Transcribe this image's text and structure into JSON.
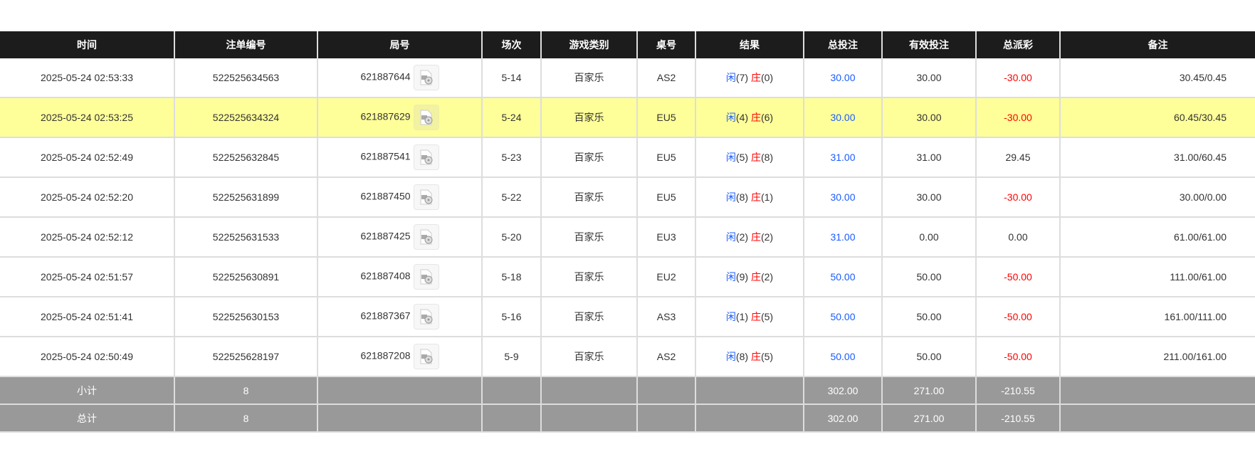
{
  "headers": [
    "时间",
    "注单编号",
    "局号",
    "场次",
    "游戏类别",
    "桌号",
    "结果",
    "总投注",
    "有效投注",
    "总派彩",
    "备注"
  ],
  "rows": [
    {
      "time": "2025-05-24 02:53:33",
      "bet_no": "522525634563",
      "round": "621887644",
      "session": "5-14",
      "game": "百家乐",
      "table": "AS2",
      "player_label": "闲",
      "player": "(7)",
      "banker_label": "庄",
      "banker": "(0)",
      "total_bet": "30.00",
      "valid_bet": "30.00",
      "payout": "-30.00",
      "payout_neg": true,
      "note": "30.45/0.45",
      "highlight": false
    },
    {
      "time": "2025-05-24 02:53:25",
      "bet_no": "522525634324",
      "round": "621887629",
      "session": "5-24",
      "game": "百家乐",
      "table": "EU5",
      "player_label": "闲",
      "player": "(4)",
      "banker_label": "庄",
      "banker": "(6)",
      "total_bet": "30.00",
      "valid_bet": "30.00",
      "payout": "-30.00",
      "payout_neg": true,
      "note": "60.45/30.45",
      "highlight": true
    },
    {
      "time": "2025-05-24 02:52:49",
      "bet_no": "522525632845",
      "round": "621887541",
      "session": "5-23",
      "game": "百家乐",
      "table": "EU5",
      "player_label": "闲",
      "player": "(5)",
      "banker_label": "庄",
      "banker": "(8)",
      "total_bet": "31.00",
      "valid_bet": "31.00",
      "payout": "29.45",
      "payout_neg": false,
      "note": "31.00/60.45",
      "highlight": false
    },
    {
      "time": "2025-05-24 02:52:20",
      "bet_no": "522525631899",
      "round": "621887450",
      "session": "5-22",
      "game": "百家乐",
      "table": "EU5",
      "player_label": "闲",
      "player": "(8)",
      "banker_label": "庄",
      "banker": "(1)",
      "total_bet": "30.00",
      "valid_bet": "30.00",
      "payout": "-30.00",
      "payout_neg": true,
      "note": "30.00/0.00",
      "highlight": false
    },
    {
      "time": "2025-05-24 02:52:12",
      "bet_no": "522525631533",
      "round": "621887425",
      "session": "5-20",
      "game": "百家乐",
      "table": "EU3",
      "player_label": "闲",
      "player": "(2)",
      "banker_label": "庄",
      "banker": "(2)",
      "total_bet": "31.00",
      "valid_bet": "0.00",
      "payout": "0.00",
      "payout_neg": false,
      "note": "61.00/61.00",
      "highlight": false
    },
    {
      "time": "2025-05-24 02:51:57",
      "bet_no": "522525630891",
      "round": "621887408",
      "session": "5-18",
      "game": "百家乐",
      "table": "EU2",
      "player_label": "闲",
      "player": "(9)",
      "banker_label": "庄",
      "banker": "(2)",
      "total_bet": "50.00",
      "valid_bet": "50.00",
      "payout": "-50.00",
      "payout_neg": true,
      "note": "111.00/61.00",
      "highlight": false
    },
    {
      "time": "2025-05-24 02:51:41",
      "bet_no": "522525630153",
      "round": "621887367",
      "session": "5-16",
      "game": "百家乐",
      "table": "AS3",
      "player_label": "闲",
      "player": "(1)",
      "banker_label": "庄",
      "banker": "(5)",
      "total_bet": "50.00",
      "valid_bet": "50.00",
      "payout": "-50.00",
      "payout_neg": true,
      "note": "161.00/111.00",
      "highlight": false
    },
    {
      "time": "2025-05-24 02:50:49",
      "bet_no": "522525628197",
      "round": "621887208",
      "session": "5-9",
      "game": "百家乐",
      "table": "AS2",
      "player_label": "闲",
      "player": "(8)",
      "banker_label": "庄",
      "banker": "(5)",
      "total_bet": "50.00",
      "valid_bet": "50.00",
      "payout": "-50.00",
      "payout_neg": true,
      "note": "211.00/161.00",
      "highlight": false
    }
  ],
  "summary": [
    {
      "label": "小计",
      "count": "8",
      "total_bet": "302.00",
      "valid_bet": "271.00",
      "payout": "-210.55"
    },
    {
      "label": "总计",
      "count": "8",
      "total_bet": "302.00",
      "valid_bet": "271.00",
      "payout": "-210.55"
    }
  ],
  "colors": {
    "header_bg": "#1c1c1c",
    "highlight": "#ffff99",
    "summary_bg": "#999999",
    "player": "#1a5cff",
    "negative": "#ff0000"
  },
  "icons": {
    "replay": "video-replay-icon"
  }
}
